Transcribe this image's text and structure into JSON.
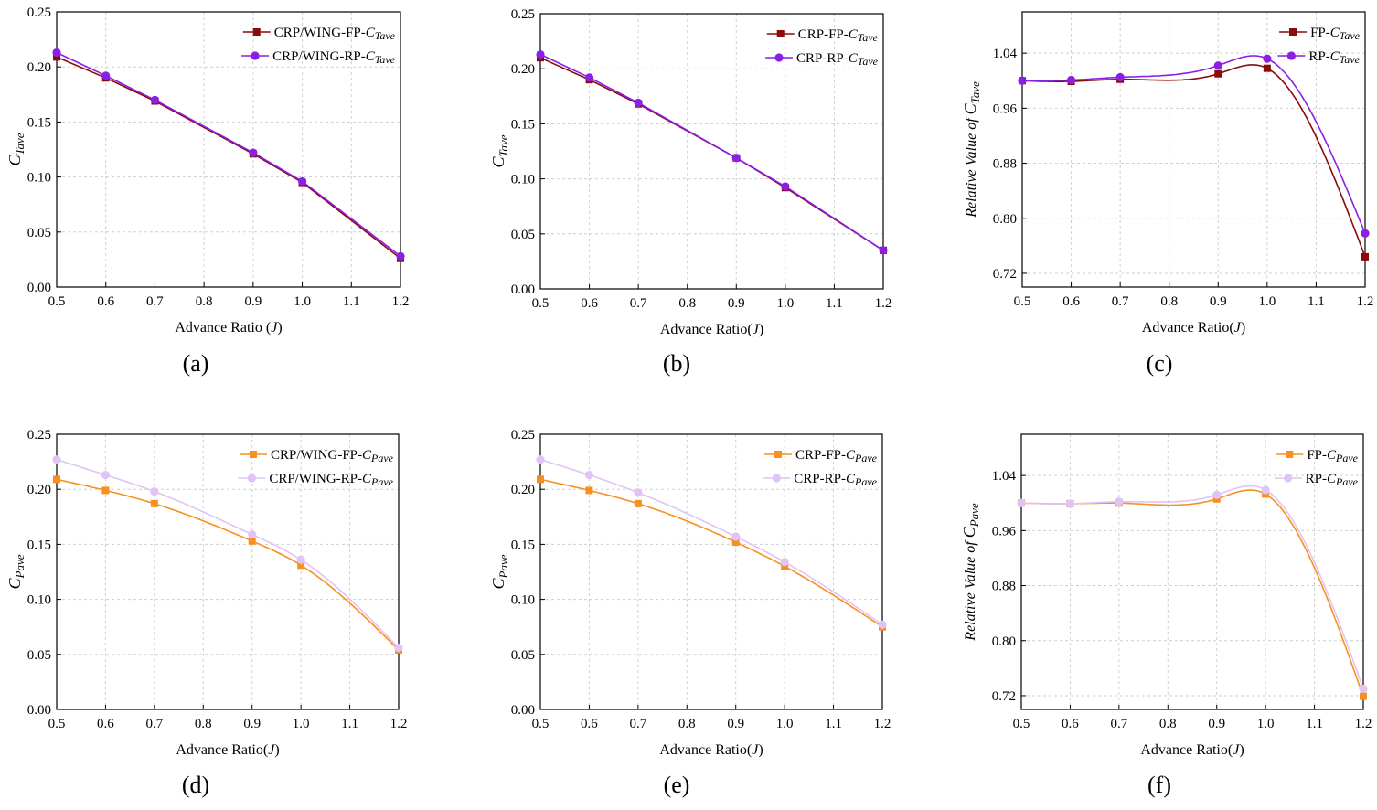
{
  "chart_data": [
    {
      "id": "a",
      "panel_label": "(a)",
      "type": "line",
      "xlabel": "Advance Ratio (",
      "xlabel_var": "J",
      "xlabel_close": ")",
      "ylabel_main": "C",
      "ylabel_sub": "Tave",
      "ylabel_prefix": "",
      "xlim": [
        0.5,
        1.2
      ],
      "ylim": [
        0,
        0.25
      ],
      "xticks": [
        "0.5",
        "0.6",
        "0.7",
        "0.8",
        "0.9",
        "1.0",
        "1.1",
        "1.2"
      ],
      "yticks": [
        "0.00",
        "0.05",
        "0.10",
        "0.15",
        "0.20",
        "0.25"
      ],
      "ytick_values": [
        0,
        0.05,
        0.1,
        0.15,
        0.2,
        0.25
      ],
      "smooth": false,
      "series": [
        {
          "name_prefix": "CRP/WING-FP-",
          "name_sym": "C",
          "name_sub": "Tave",
          "color": "#8b0a0a",
          "marker": "square",
          "x": [
            0.5,
            0.6,
            0.7,
            0.9,
            1.0,
            1.2
          ],
          "y": [
            0.209,
            0.19,
            0.169,
            0.121,
            0.095,
            0.026
          ]
        },
        {
          "name_prefix": "CRP/WING-RP-",
          "name_sym": "C",
          "name_sub": "Tave",
          "color": "#8a1fe6",
          "marker": "circle",
          "x": [
            0.5,
            0.6,
            0.7,
            0.9,
            1.0,
            1.2
          ],
          "y": [
            0.213,
            0.192,
            0.17,
            0.122,
            0.096,
            0.028
          ]
        }
      ]
    },
    {
      "id": "b",
      "panel_label": "(b)",
      "type": "line",
      "xlabel": "Advance Ratio(",
      "xlabel_var": "J",
      "xlabel_close": ")",
      "ylabel_main": "C",
      "ylabel_sub": "Tave",
      "ylabel_prefix": "",
      "xlim": [
        0.5,
        1.2
      ],
      "ylim": [
        0,
        0.25
      ],
      "xticks": [
        "0.5",
        "0.6",
        "0.7",
        "0.8",
        "0.9",
        "1.0",
        "1.1",
        "1.2"
      ],
      "yticks": [
        "0.00",
        "0.05",
        "0.10",
        "0.15",
        "0.20",
        "0.25"
      ],
      "ytick_values": [
        0,
        0.05,
        0.1,
        0.15,
        0.2,
        0.25
      ],
      "smooth": false,
      "series": [
        {
          "name_prefix": "CRP-FP-",
          "name_sym": "C",
          "name_sub": "Tave",
          "color": "#8b0a0a",
          "marker": "square",
          "x": [
            0.5,
            0.6,
            0.7,
            0.9,
            1.0,
            1.2
          ],
          "y": [
            0.21,
            0.19,
            0.168,
            0.119,
            0.092,
            0.035
          ]
        },
        {
          "name_prefix": "CRP-RP-",
          "name_sym": "C",
          "name_sub": "Tave",
          "color": "#8a1fe6",
          "marker": "circle",
          "x": [
            0.5,
            0.6,
            0.7,
            0.9,
            1.0,
            1.2
          ],
          "y": [
            0.213,
            0.192,
            0.169,
            0.119,
            0.093,
            0.035
          ]
        }
      ]
    },
    {
      "id": "c",
      "panel_label": "(c)",
      "type": "line",
      "xlabel": "Advance Ratio(",
      "xlabel_var": "J",
      "xlabel_close": ")",
      "ylabel_main": "C",
      "ylabel_sub": "Tave",
      "ylabel_prefix": "Relative Value of ",
      "xlim": [
        0.5,
        1.2
      ],
      "ylim": [
        0.7,
        1.1
      ],
      "xticks": [
        "0.5",
        "0.6",
        "0.7",
        "0.8",
        "0.9",
        "1.0",
        "1.1",
        "1.2"
      ],
      "yticks": [
        "0.72",
        "0.80",
        "0.88",
        "0.96",
        "1.04"
      ],
      "ytick_values": [
        0.72,
        0.8,
        0.88,
        0.96,
        1.04
      ],
      "smooth": true,
      "series": [
        {
          "name_prefix": "FP-",
          "name_sym": "C",
          "name_sub": "Tave",
          "color": "#8b0a0a",
          "marker": "square",
          "x": [
            0.5,
            0.6,
            0.7,
            0.9,
            1.0,
            1.2
          ],
          "y": [
            1.0,
            0.999,
            1.002,
            1.01,
            1.018,
            0.744
          ]
        },
        {
          "name_prefix": "RP-",
          "name_sym": "C",
          "name_sub": "Tave",
          "color": "#8a1fe6",
          "marker": "circle",
          "x": [
            0.5,
            0.6,
            0.7,
            0.9,
            1.0,
            1.2
          ],
          "y": [
            1.0,
            1.001,
            1.005,
            1.022,
            1.032,
            0.778
          ]
        }
      ]
    },
    {
      "id": "d",
      "panel_label": "(d)",
      "type": "line",
      "xlabel": "Advance Ratio(",
      "xlabel_var": "J",
      "xlabel_close": ")",
      "ylabel_main": "C",
      "ylabel_sub": "Pave",
      "ylabel_prefix": "",
      "xlim": [
        0.5,
        1.2
      ],
      "ylim": [
        0,
        0.25
      ],
      "xticks": [
        "0.5",
        "0.6",
        "0.7",
        "0.8",
        "0.9",
        "1.0",
        "1.1",
        "1.2"
      ],
      "yticks": [
        "0.00",
        "0.05",
        "0.10",
        "0.15",
        "0.20",
        "0.25"
      ],
      "ytick_values": [
        0,
        0.05,
        0.1,
        0.15,
        0.2,
        0.25
      ],
      "smooth": true,
      "series": [
        {
          "name_prefix": "CRP/WING-FP-",
          "name_sym": "C",
          "name_sub": "Pave",
          "color": "#f7901e",
          "marker": "square",
          "x": [
            0.5,
            0.6,
            0.7,
            0.9,
            1.0,
            1.2
          ],
          "y": [
            0.209,
            0.199,
            0.187,
            0.153,
            0.131,
            0.054
          ]
        },
        {
          "name_prefix": "CRP/WING-RP-",
          "name_sym": "C",
          "name_sub": "Pave",
          "color": "#e2c3f5",
          "marker": "circle",
          "x": [
            0.5,
            0.6,
            0.7,
            0.9,
            1.0,
            1.2
          ],
          "y": [
            0.227,
            0.213,
            0.198,
            0.159,
            0.136,
            0.056
          ]
        }
      ]
    },
    {
      "id": "e",
      "panel_label": "(e)",
      "type": "line",
      "xlabel": "Advance Ratio(",
      "xlabel_var": "J",
      "xlabel_close": ")",
      "ylabel_main": "C",
      "ylabel_sub": "Pave",
      "ylabel_prefix": "",
      "xlim": [
        0.5,
        1.2
      ],
      "ylim": [
        0,
        0.25
      ],
      "xticks": [
        "0.5",
        "0.6",
        "0.7",
        "0.8",
        "0.9",
        "1.0",
        "1.1",
        "1.2"
      ],
      "yticks": [
        "0.00",
        "0.05",
        "0.10",
        "0.15",
        "0.20",
        "0.25"
      ],
      "ytick_values": [
        0,
        0.05,
        0.1,
        0.15,
        0.2,
        0.25
      ],
      "smooth": true,
      "series": [
        {
          "name_prefix": "CRP-FP-",
          "name_sym": "C",
          "name_sub": "Pave",
          "color": "#f7901e",
          "marker": "square",
          "x": [
            0.5,
            0.6,
            0.7,
            0.9,
            1.0,
            1.2
          ],
          "y": [
            0.209,
            0.199,
            0.187,
            0.152,
            0.13,
            0.075
          ]
        },
        {
          "name_prefix": "CRP-RP-",
          "name_sym": "C",
          "name_sub": "Pave",
          "color": "#e2c3f5",
          "marker": "circle",
          "x": [
            0.5,
            0.6,
            0.7,
            0.9,
            1.0,
            1.2
          ],
          "y": [
            0.227,
            0.213,
            0.197,
            0.157,
            0.134,
            0.077
          ]
        }
      ]
    },
    {
      "id": "f",
      "panel_label": "(f)",
      "type": "line",
      "xlabel": "Advance Ratio(",
      "xlabel_var": "J",
      "xlabel_close": ")",
      "ylabel_main": "C",
      "ylabel_sub": "Pave",
      "ylabel_prefix": "Relative Value of ",
      "xlim": [
        0.5,
        1.2
      ],
      "ylim": [
        0.7,
        1.1
      ],
      "xticks": [
        "0.5",
        "0.6",
        "0.7",
        "0.8",
        "0.9",
        "1.0",
        "1.1",
        "1.2"
      ],
      "yticks": [
        "0.72",
        "0.80",
        "0.88",
        "0.96",
        "1.04"
      ],
      "ytick_values": [
        0.72,
        0.8,
        0.88,
        0.96,
        1.04
      ],
      "smooth": true,
      "series": [
        {
          "name_prefix": "FP-",
          "name_sym": "C",
          "name_sub": "Pave",
          "color": "#f7901e",
          "marker": "square",
          "x": [
            0.5,
            0.6,
            0.7,
            0.9,
            1.0,
            1.2
          ],
          "y": [
            1.0,
            0.999,
            1.0,
            1.006,
            1.013,
            0.719
          ]
        },
        {
          "name_prefix": "RP-",
          "name_sym": "C",
          "name_sub": "Pave",
          "color": "#e2c3f5",
          "marker": "circle",
          "x": [
            0.5,
            0.6,
            0.7,
            0.9,
            1.0,
            1.2
          ],
          "y": [
            1.0,
            0.999,
            1.002,
            1.012,
            1.019,
            0.73
          ]
        }
      ]
    }
  ]
}
